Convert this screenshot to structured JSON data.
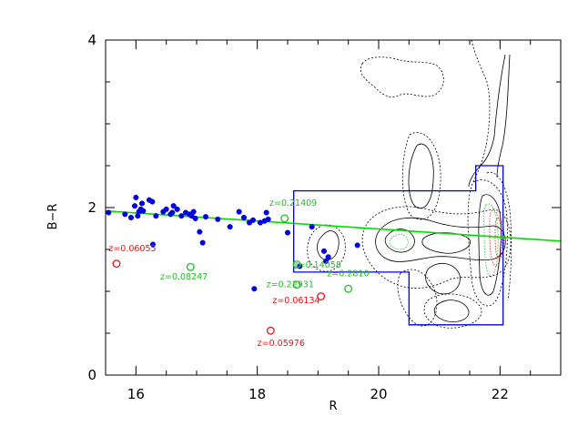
{
  "chart_data": {
    "type": "scatter",
    "title": "",
    "xlabel": "R",
    "ylabel": "B−R",
    "xlim": [
      15.5,
      23.0
    ],
    "ylim": [
      0,
      4
    ],
    "xticks": [
      16,
      18,
      20,
      22
    ],
    "yticks": [
      0,
      2,
      4
    ],
    "xtick_labels": [
      "16",
      "18",
      "20",
      "22"
    ],
    "ytick_labels": [
      "0",
      "2",
      "4"
    ],
    "grid": false,
    "legend": "none",
    "colors": {
      "members": "#0000e0",
      "green_objects": "#22bb22",
      "red_objects": "#ee1111",
      "fit_line": "#00dd00",
      "selection_box": "#0000e0",
      "contours": "#000000"
    },
    "series": [
      {
        "marker": "filled-circle",
        "points": [
          [
            15.55,
            1.94
          ],
          [
            15.82,
            1.92
          ],
          [
            15.92,
            1.88
          ],
          [
            15.98,
            2.02
          ],
          [
            16.0,
            2.12
          ],
          [
            16.03,
            1.9
          ],
          [
            16.05,
            1.95
          ],
          [
            16.08,
            1.98
          ],
          [
            16.1,
            2.05
          ],
          [
            16.12,
            1.96
          ],
          [
            16.22,
            2.09
          ],
          [
            16.27,
            2.07
          ],
          [
            16.33,
            1.9
          ],
          [
            16.45,
            1.95
          ],
          [
            16.5,
            1.98
          ],
          [
            16.57,
            1.92
          ],
          [
            16.6,
            1.94
          ],
          [
            16.62,
            2.02
          ],
          [
            16.68,
            1.98
          ],
          [
            16.75,
            1.9
          ],
          [
            16.82,
            1.94
          ],
          [
            16.88,
            1.92
          ],
          [
            16.92,
            1.9
          ],
          [
            16.98,
            1.87
          ],
          [
            16.95,
            1.95
          ],
          [
            17.05,
            1.71
          ],
          [
            17.1,
            1.58
          ],
          [
            17.15,
            1.89
          ],
          [
            17.35,
            1.86
          ],
          [
            17.55,
            1.77
          ],
          [
            17.7,
            1.95
          ],
          [
            17.78,
            1.88
          ],
          [
            17.87,
            1.82
          ],
          [
            17.93,
            1.85
          ],
          [
            18.05,
            1.82
          ],
          [
            18.12,
            1.84
          ],
          [
            18.15,
            1.94
          ],
          [
            18.18,
            1.86
          ],
          [
            18.5,
            1.7
          ],
          [
            18.9,
            1.77
          ],
          [
            19.1,
            1.48
          ],
          [
            19.13,
            1.36
          ],
          [
            19.17,
            1.41
          ],
          [
            19.65,
            1.55
          ],
          [
            18.7,
            1.3
          ],
          [
            17.95,
            1.03
          ],
          [
            16.28,
            1.56
          ]
        ]
      },
      {
        "marker": "open-circle",
        "points": [
          [
            18.45,
            1.87
          ],
          [
            16.9,
            1.29
          ],
          [
            18.65,
            1.32
          ],
          [
            18.65,
            1.08
          ],
          [
            19.5,
            1.03
          ]
        ]
      },
      {
        "marker": "open-circle",
        "points": [
          [
            15.68,
            1.33
          ],
          [
            19.05,
            0.94
          ],
          [
            18.22,
            0.53
          ]
        ]
      }
    ],
    "fit_line": [
      [
        15.5,
        1.96
      ],
      [
        23.0,
        1.6
      ]
    ],
    "selection_box": [
      [
        18.6,
        2.2
      ],
      [
        21.6,
        2.2
      ],
      [
        21.6,
        2.5
      ],
      [
        22.05,
        2.5
      ],
      [
        22.05,
        0.6
      ],
      [
        20.5,
        0.6
      ],
      [
        20.5,
        1.23
      ],
      [
        18.6,
        1.23
      ]
    ],
    "annotations": [
      {
        "text": "z=0.21409",
        "x": 18.2,
        "y": 2.02,
        "color": "green"
      },
      {
        "text": "z=0.06055",
        "x": 15.55,
        "y": 1.48,
        "color": "red"
      },
      {
        "text": "z=0.08247",
        "x": 16.4,
        "y": 1.14,
        "color": "green"
      },
      {
        "text": "z=0.14058",
        "x": 18.6,
        "y": 1.28,
        "color": "green"
      },
      {
        "text": "z=0.22931",
        "x": 18.15,
        "y": 1.05,
        "color": "green"
      },
      {
        "text": "z=0.2810",
        "x": 19.15,
        "y": 1.18,
        "color": "green"
      },
      {
        "text": "z=0.06134",
        "x": 18.25,
        "y": 0.86,
        "color": "red"
      },
      {
        "text": "z=0.05976",
        "x": 18.0,
        "y": 0.35,
        "color": "red"
      }
    ]
  }
}
